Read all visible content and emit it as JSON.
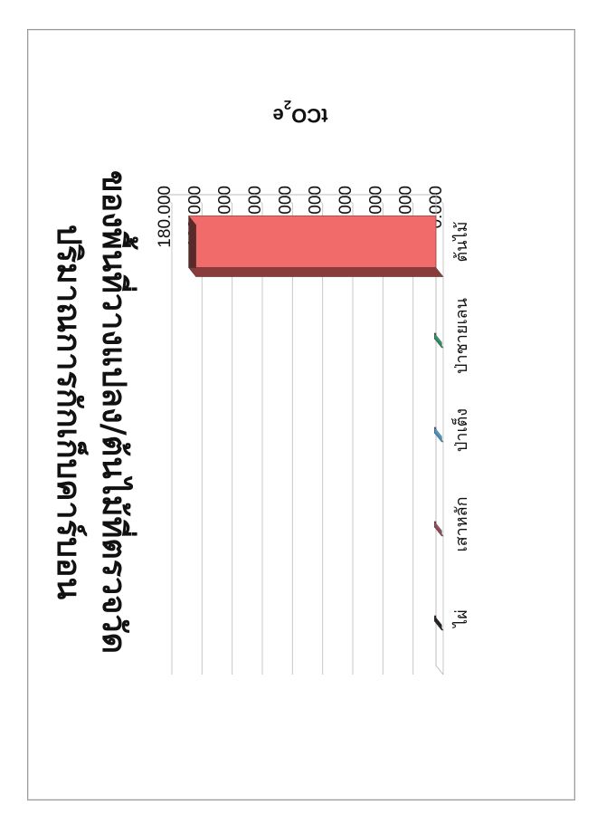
{
  "chart_data": {
    "type": "bar",
    "title_line1": "ปริมาณการกักเก็บคาร์บอน",
    "title_line2": "ของพื้นที่วางแปลง/ต้นไม้ที่ตรวจวัด",
    "ylabel_main": "tCO",
    "ylabel_sub": "2",
    "ylabel_tail": "e",
    "categories": [
      "ต้นไม้",
      "ป่าชายเลน",
      "ป่าเต็ง",
      "เสาหลัก",
      "ไผ่"
    ],
    "values": [
      164,
      1,
      1,
      1,
      1
    ],
    "ylim": [
      0,
      180
    ],
    "yticks": [
      "0.000",
      "20.000",
      "40.000",
      "60.000",
      "80.000",
      "100.000",
      "120.000",
      "140.000",
      "160.000",
      "180.000"
    ],
    "grid": true,
    "colors": [
      "#f26b6b",
      "#2f9a6a",
      "#4a9fd8",
      "#9a5060",
      "#222222"
    ]
  }
}
